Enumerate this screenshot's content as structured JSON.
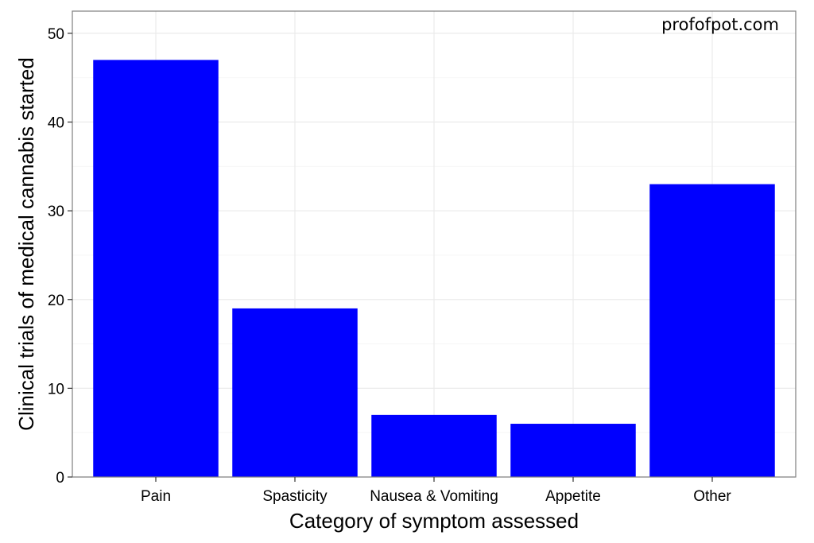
{
  "watermark": "profofpot.com",
  "colors": {
    "bar": "#0000ff",
    "panel_background": "#ffffff",
    "grid": "#ebebeb",
    "panel_border": "#7f7f7f"
  },
  "chart_data": {
    "type": "bar",
    "title": "",
    "xlabel": "Category of symptom assessed",
    "ylabel": "Clinical trials of medical cannabis started",
    "categories": [
      "Pain",
      "Spasticity",
      "Nausea & Vomiting",
      "Appetite",
      "Other"
    ],
    "values": [
      47,
      19,
      7,
      6,
      33
    ],
    "ylim": [
      0,
      52.5
    ],
    "yticks": [
      0,
      10,
      20,
      30,
      40,
      50
    ],
    "grid": true,
    "legend": "none"
  }
}
